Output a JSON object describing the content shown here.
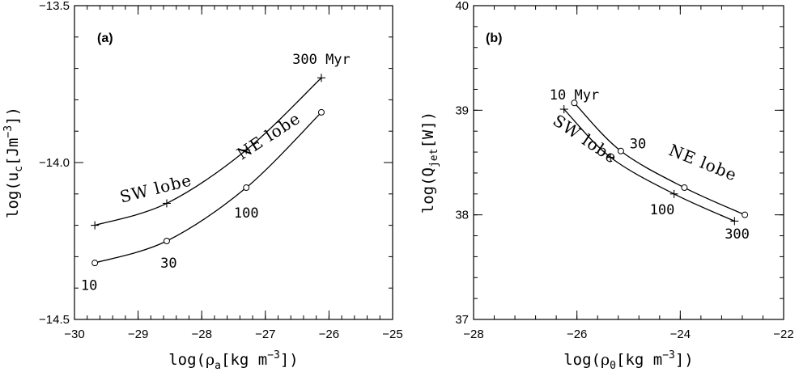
{
  "chart_data": [
    {
      "type": "line",
      "panel_label": "(a)",
      "xlabel_parts": [
        "log(",
        "ρ",
        "a",
        "[kg  m",
        "−3",
        "])"
      ],
      "ylabel_parts": [
        "log(u",
        "c",
        "[Jm",
        "−3",
        "])"
      ],
      "xlim": [
        -30,
        -25
      ],
      "ylim": [
        -14.5,
        -13.5
      ],
      "x_ticks": [
        -30,
        -29,
        -28,
        -27,
        -26,
        -25
      ],
      "x_tick_labels": [
        "−30",
        "−29",
        "−28",
        "−27",
        "−26",
        "−25"
      ],
      "y_ticks": [
        -14.5,
        -14.0,
        -13.5
      ],
      "y_tick_labels": [
        "−14.5",
        "−14.0",
        "−13.5"
      ],
      "series": [
        {
          "name": "SW lobe",
          "marker": "plus",
          "points": [
            [
              -29.68,
              -14.2
            ],
            [
              -28.55,
              -14.13
            ],
            [
              -27.3,
              -13.96
            ],
            [
              -26.12,
              -13.73
            ]
          ]
        },
        {
          "name": "NE lobe",
          "marker": "circle",
          "points": [
            [
              -29.68,
              -14.32
            ],
            [
              -28.55,
              -14.25
            ],
            [
              -27.3,
              -14.08
            ],
            [
              -26.12,
              -13.84
            ]
          ]
        }
      ],
      "annotations": [
        "10",
        "30",
        "100",
        "300  Myr"
      ]
    },
    {
      "type": "line",
      "panel_label": "(b)",
      "xlabel_parts": [
        "log(",
        "ρ",
        "0",
        "[kg  m",
        "−3",
        "])"
      ],
      "ylabel_parts": [
        "log(Q",
        "jet",
        "[W])"
      ],
      "xlim": [
        -28,
        -22
      ],
      "ylim": [
        37,
        40
      ],
      "x_ticks": [
        -28,
        -26,
        -24,
        -22
      ],
      "x_tick_labels": [
        "−28",
        "−26",
        "−24",
        "−22"
      ],
      "y_ticks": [
        37,
        38,
        39,
        40
      ],
      "y_tick_labels": [
        "37",
        "38",
        "39",
        "40"
      ],
      "series": [
        {
          "name": "SW lobe",
          "marker": "plus",
          "points": [
            [
              -26.25,
              39.01
            ],
            [
              -25.35,
              38.55
            ],
            [
              -24.12,
              38.2
            ],
            [
              -22.95,
              37.94
            ]
          ]
        },
        {
          "name": "NE lobe",
          "marker": "circle",
          "points": [
            [
              -26.05,
              39.07
            ],
            [
              -25.15,
              38.61
            ],
            [
              -23.92,
              38.26
            ],
            [
              -22.75,
              38.0
            ]
          ]
        }
      ],
      "annotations": [
        "10  Myr",
        "30",
        "100",
        "300"
      ]
    }
  ]
}
